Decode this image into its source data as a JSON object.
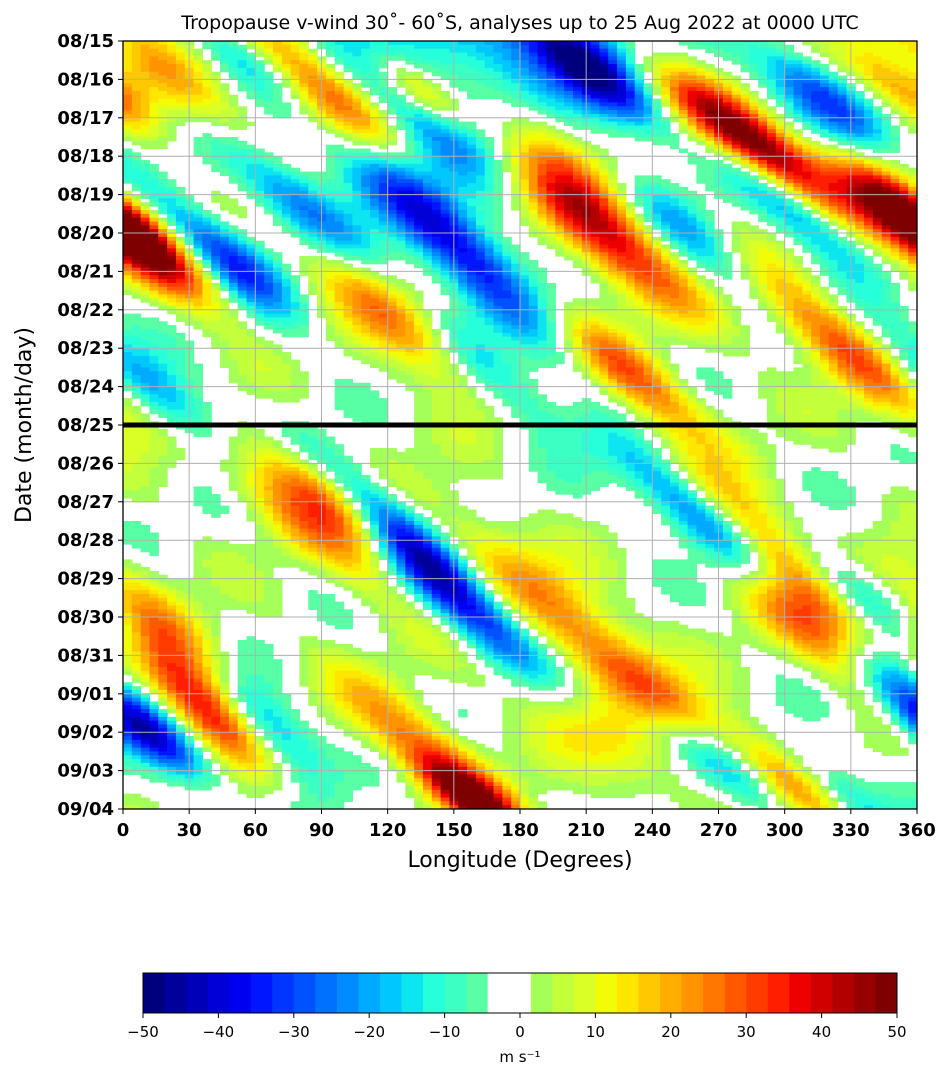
{
  "chart_data": {
    "type": "heatmap",
    "title": "Tropopause v-wind 30˚- 60˚S, analyses up to 25 Aug 2022 at 0000 UTC",
    "xlabel": "Longitude (Degrees)",
    "ylabel": "Date (month/day)",
    "xlim": [
      0,
      360
    ],
    "x_ticks": [
      "0",
      "30",
      "60",
      "90",
      "120",
      "150",
      "180",
      "210",
      "240",
      "270",
      "300",
      "330",
      "360"
    ],
    "y_ticks": [
      "08/15",
      "08/16",
      "08/17",
      "08/18",
      "08/19",
      "08/20",
      "08/21",
      "08/22",
      "08/23",
      "08/24",
      "08/25",
      "08/26",
      "08/27",
      "08/28",
      "08/29",
      "08/30",
      "08/31",
      "09/01",
      "09/02",
      "09/03",
      "09/04"
    ],
    "grid": true,
    "analysis_cutoff": "08/25",
    "colorbar": {
      "label": "m s⁻¹",
      "range": [
        -50,
        50
      ],
      "step": 2.5,
      "zero_band_white": true,
      "ticks": [
        "−50",
        "−40",
        "−30",
        "−20",
        "−10",
        "0",
        "10",
        "20",
        "30",
        "40",
        "50"
      ],
      "colors": [
        "#00007f",
        "#00009a",
        "#0000b8",
        "#0000d7",
        "#0000f1",
        "#0016ff",
        "#0036ff",
        "#0052ff",
        "#0070ff",
        "#008cff",
        "#00aaff",
        "#00c8ff",
        "#0de5f1",
        "#26ffd9",
        "#3bffc3",
        "#59ffa5",
        "#ffffff",
        "#ffffff",
        "#a5ff59",
        "#c3ff3b",
        "#d9ff26",
        "#f1fc06",
        "#ffe600",
        "#ffc800",
        "#ffae00",
        "#ff9400",
        "#ff7600",
        "#ff5800",
        "#ff3b00",
        "#ff1e00",
        "#ef0000",
        "#d10000",
        "#b20000",
        "#960000",
        "#7f0000"
      ]
    },
    "waves": [
      {
        "lon0": 10,
        "day0": 5.3,
        "slope": 18,
        "amp": 42,
        "width": 1.2,
        "length": 1.6
      },
      {
        "lon0": 45,
        "day0": 5.6,
        "slope": 18,
        "amp": -38,
        "width": 1.1,
        "length": 1.6
      },
      {
        "lon0": 80,
        "day0": 4.2,
        "slope": 18,
        "amp": -28,
        "width": 1.0,
        "length": 2.0
      },
      {
        "lon0": 72,
        "day0": 1.0,
        "slope": 18,
        "amp": 18,
        "width": 1.0,
        "length": 2.2
      },
      {
        "lon0": 25,
        "day0": 1.2,
        "slope": 18,
        "amp": 20,
        "width": 1.1,
        "length": 2.0
      },
      {
        "lon0": 55,
        "day0": 0.4,
        "slope": 18,
        "amp": -25,
        "width": 0.9,
        "length": 1.2
      },
      {
        "lon0": 100,
        "day0": 1.6,
        "slope": 18,
        "amp": 32,
        "width": 1.0,
        "length": 1.8
      },
      {
        "lon0": 135,
        "day0": 1.3,
        "slope": 18,
        "amp": 30,
        "width": 0.8,
        "length": 1.0
      },
      {
        "lon0": 165,
        "day0": 1.0,
        "slope": 0,
        "amp": -38,
        "width": 3.5,
        "length": 3.0
      },
      {
        "lon0": 150,
        "day0": 5.2,
        "slope": 16,
        "amp": -35,
        "width": 1.1,
        "length": 2.6
      },
      {
        "lon0": 125,
        "day0": 7.2,
        "slope": 18,
        "amp": 36,
        "width": 1.2,
        "length": 2.0
      },
      {
        "lon0": 160,
        "day0": 8.3,
        "slope": 18,
        "amp": -26,
        "width": 1.0,
        "length": 2.0
      },
      {
        "lon0": 190,
        "day0": 2.5,
        "slope": 15,
        "amp": 38,
        "width": 1.5,
        "length": 2.8
      },
      {
        "lon0": 215,
        "day0": 5.0,
        "slope": 18,
        "amp": 30,
        "width": 1.3,
        "length": 2.0
      },
      {
        "lon0": 230,
        "day0": 8.7,
        "slope": 18,
        "amp": 28,
        "width": 1.0,
        "length": 1.6
      },
      {
        "lon0": 212,
        "day0": 0.8,
        "slope": 18,
        "amp": -32,
        "width": 1.0,
        "length": 1.4
      },
      {
        "lon0": 255,
        "day0": 5.0,
        "slope": 18,
        "amp": -25,
        "width": 1.1,
        "length": 1.8
      },
      {
        "lon0": 258,
        "day0": 1.7,
        "slope": 18,
        "amp": 22,
        "width": 1.0,
        "length": 1.6
      },
      {
        "lon0": 290,
        "day0": 2.8,
        "slope": 18,
        "amp": 44,
        "width": 1.0,
        "length": 1.6
      },
      {
        "lon0": 305,
        "day0": 4.4,
        "slope": 18,
        "amp": -24,
        "width": 0.9,
        "length": 1.6
      },
      {
        "lon0": 322,
        "day0": 7.8,
        "slope": 18,
        "amp": 30,
        "width": 1.1,
        "length": 2.2
      },
      {
        "lon0": 318,
        "day0": 1.5,
        "slope": 18,
        "amp": -32,
        "width": 1.0,
        "length": 1.5
      },
      {
        "lon0": 352,
        "day0": 4.4,
        "slope": 18,
        "amp": 36,
        "width": 1.0,
        "length": 1.4
      },
      {
        "lon0": 350,
        "day0": 1.2,
        "slope": 18,
        "amp": 25,
        "width": 0.9,
        "length": 1.2
      },
      {
        "lon0": 20,
        "day0": 9.3,
        "slope": 18,
        "amp": -26,
        "width": 1.0,
        "length": 1.8
      },
      {
        "lon0": 80,
        "day0": 12.3,
        "slope": 18,
        "amp": 20,
        "width": 1.1,
        "length": 2.2
      },
      {
        "lon0": 98,
        "day0": 12.0,
        "slope": 18,
        "amp": 42,
        "width": 1.0,
        "length": 1.6
      },
      {
        "lon0": 120,
        "day0": 12.6,
        "slope": 18,
        "amp": -42,
        "width": 1.0,
        "length": 2.0
      },
      {
        "lon0": 160,
        "day0": 15.0,
        "slope": 18,
        "amp": -30,
        "width": 1.0,
        "length": 2.4
      },
      {
        "lon0": 195,
        "day0": 14.6,
        "slope": 18,
        "amp": 22,
        "width": 1.3,
        "length": 2.4
      },
      {
        "lon0": 265,
        "day0": 12.5,
        "slope": 18,
        "amp": -40,
        "width": 1.0,
        "length": 2.0
      },
      {
        "lon0": 295,
        "day0": 13.3,
        "slope": 18,
        "amp": 40,
        "width": 1.1,
        "length": 2.4
      },
      {
        "lon0": 330,
        "day0": 14.3,
        "slope": 18,
        "amp": -28,
        "width": 1.0,
        "length": 1.4
      },
      {
        "lon0": 320,
        "day0": 15.6,
        "slope": 18,
        "amp": 36,
        "width": 1.1,
        "length": 1.8
      },
      {
        "lon0": 350,
        "day0": 16.8,
        "slope": 18,
        "amp": -38,
        "width": 1.0,
        "length": 1.6
      },
      {
        "lon0": 30,
        "day0": 16.0,
        "slope": 15,
        "amp": 26,
        "width": 1.1,
        "length": 2.2
      },
      {
        "lon0": 38,
        "day0": 17.4,
        "slope": 15,
        "amp": 42,
        "width": 1.0,
        "length": 1.6
      },
      {
        "lon0": 60,
        "day0": 17.6,
        "slope": 15,
        "amp": -40,
        "width": 1.0,
        "length": 1.6
      },
      {
        "lon0": 15,
        "day0": 18.2,
        "slope": 18,
        "amp": -30,
        "width": 0.9,
        "length": 1.2
      },
      {
        "lon0": 140,
        "day0": 18.6,
        "slope": 18,
        "amp": 26,
        "width": 1.2,
        "length": 2.0
      },
      {
        "lon0": 160,
        "day0": 19.8,
        "slope": 18,
        "amp": 40,
        "width": 0.8,
        "length": 1.0
      },
      {
        "lon0": 210,
        "day0": 17.8,
        "slope": 18,
        "amp": 20,
        "width": 1.2,
        "length": 2.0
      },
      {
        "lon0": 245,
        "day0": 17.2,
        "slope": 18,
        "amp": 26,
        "width": 1.0,
        "length": 1.6
      },
      {
        "lon0": 272,
        "day0": 18.8,
        "slope": 18,
        "amp": -26,
        "width": 1.0,
        "length": 1.6
      },
      {
        "lon0": 305,
        "day0": 19.4,
        "slope": 18,
        "amp": 30,
        "width": 1.0,
        "length": 1.6
      },
      {
        "lon0": 325,
        "day0": 19.6,
        "slope": 18,
        "amp": -24,
        "width": 0.9,
        "length": 1.4
      }
    ]
  }
}
